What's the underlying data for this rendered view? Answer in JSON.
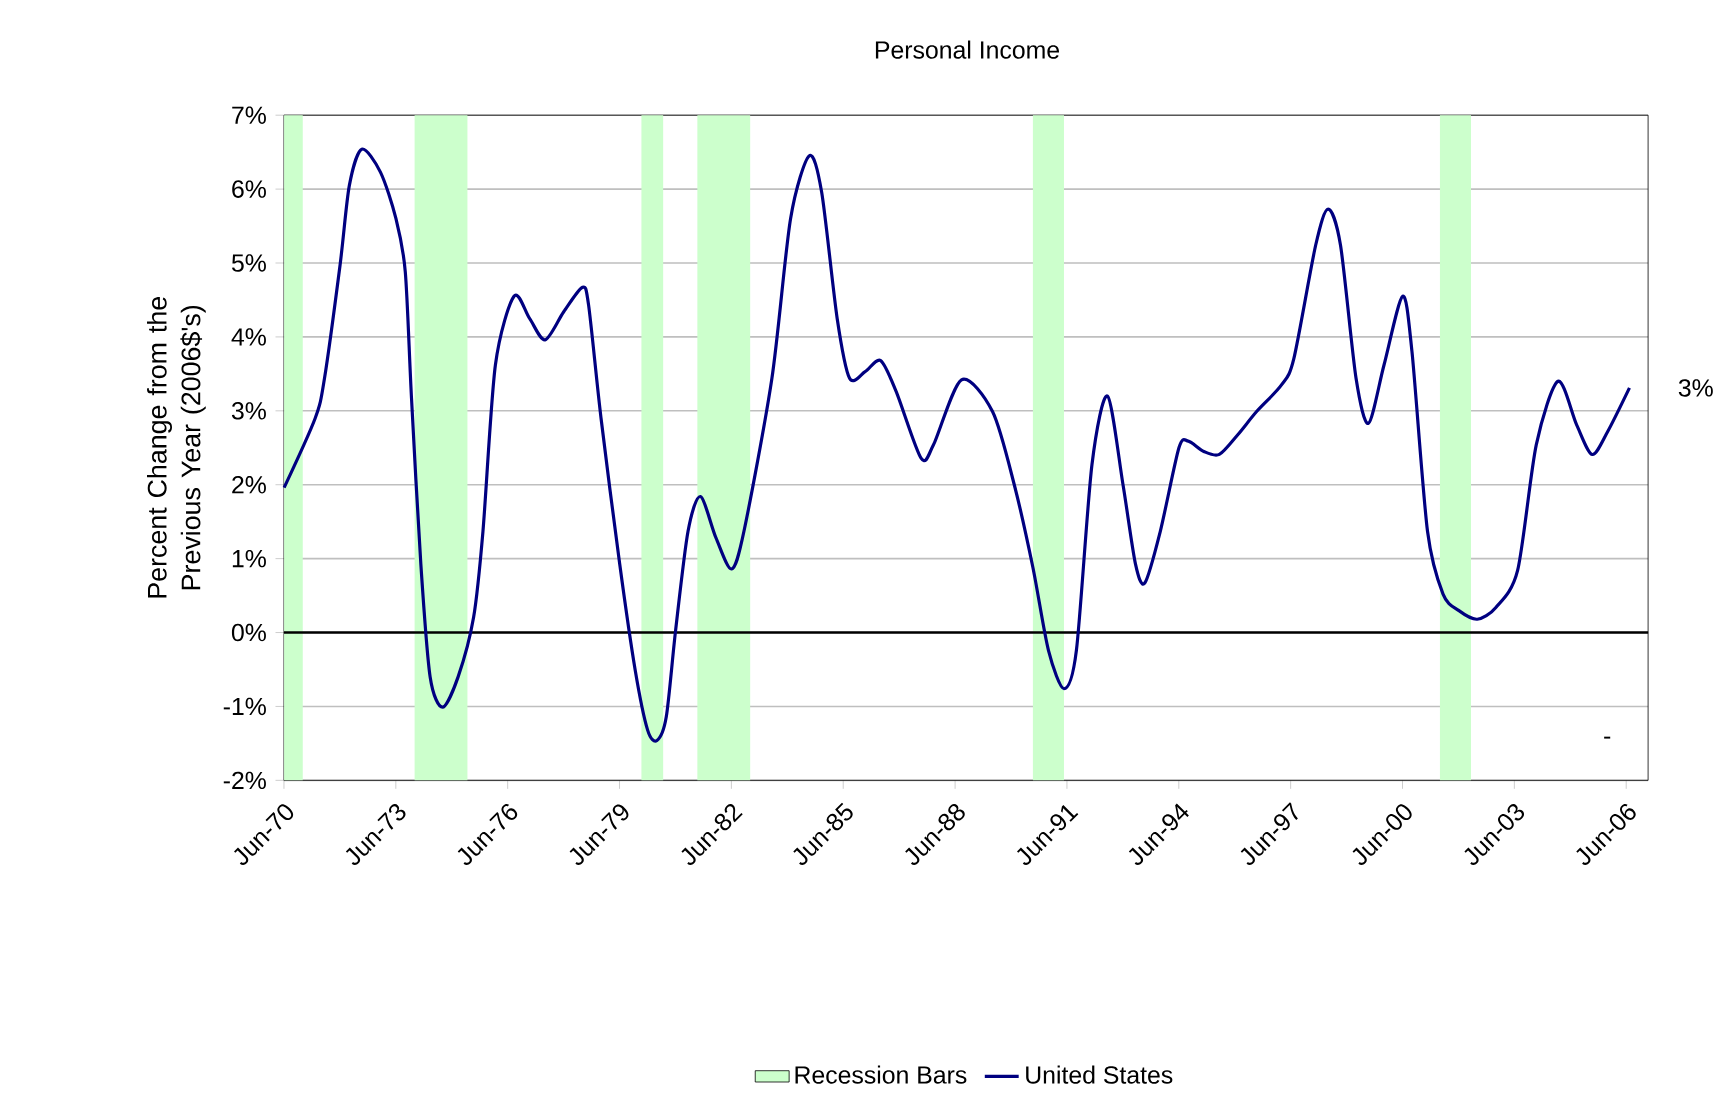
{
  "chart_data": {
    "type": "line",
    "title": "Personal Income",
    "ylabel": "Percent Change from the Previous Year (2006$'s)",
    "series": [
      {
        "name": "United States",
        "color": "#000080",
        "x": [
          "1970-07",
          "1971-05",
          "1971-08",
          "1972-01",
          "1972-04",
          "1972-08",
          "1973-02",
          "1973-07",
          "1973-10",
          "1973-12",
          "1974-03",
          "1974-06",
          "1974-10",
          "1975-03",
          "1975-08",
          "1975-11",
          "1976-03",
          "1976-09",
          "1977-02",
          "1977-07",
          "1978-01",
          "1978-07",
          "1978-09",
          "1979-01",
          "1979-07",
          "1979-12",
          "1980-04",
          "1980-07",
          "1980-10",
          "1981-01",
          "1981-05",
          "1981-09",
          "1982-02",
          "1982-07",
          "1982-11",
          "1983-08",
          "1984-02",
          "1984-08",
          "1984-12",
          "1985-05",
          "1985-09",
          "1986-02",
          "1986-07",
          "1986-12",
          "1987-08",
          "1987-12",
          "1988-09",
          "1989-07",
          "1990-02",
          "1990-08",
          "1991-01",
          "1991-06",
          "1991-10",
          "1992-03",
          "1992-08",
          "1993-01",
          "1993-05",
          "1993-08",
          "1994-01",
          "1994-07",
          "1994-10",
          "1995-03",
          "1995-08",
          "1996-02",
          "1996-08",
          "1997-04",
          "1997-08",
          "1998-03",
          "1998-07",
          "1998-11",
          "1999-04",
          "1999-08",
          "2000-01",
          "2000-07",
          "2000-10",
          "2001-03",
          "2001-08",
          "2002-01",
          "2002-07",
          "2003-01",
          "2003-08",
          "2004-02",
          "2004-09",
          "2005-03",
          "2005-08",
          "2006-01",
          "2006-08"
        ],
        "values": [
          1.96,
          2.9,
          3.44,
          4.97,
          6.05,
          6.54,
          6.23,
          5.6,
          4.88,
          3.17,
          0.93,
          -0.6,
          -1.01,
          -0.6,
          0.21,
          1.37,
          3.62,
          4.55,
          4.25,
          3.96,
          4.34,
          4.67,
          4.43,
          2.9,
          0.93,
          -0.51,
          -1.32,
          -1.46,
          -1.14,
          0.03,
          1.37,
          1.84,
          1.28,
          0.86,
          1.37,
          3.44,
          5.6,
          6.45,
          5.96,
          4.25,
          3.44,
          3.53,
          3.68,
          3.26,
          2.36,
          2.54,
          3.42,
          2.99,
          2.0,
          0.88,
          -0.24,
          -0.76,
          -0.24,
          2.27,
          3.2,
          2.0,
          0.93,
          0.67,
          1.37,
          2.5,
          2.59,
          2.45,
          2.41,
          2.68,
          2.99,
          3.35,
          3.71,
          5.24,
          5.73,
          5.24,
          3.44,
          2.83,
          3.62,
          4.55,
          3.8,
          1.37,
          0.52,
          0.3,
          0.18,
          0.34,
          0.84,
          2.54,
          3.4,
          2.81,
          2.41,
          2.72,
          3.31
        ]
      }
    ],
    "bands": [
      {
        "axis": "x",
        "from": "1970-07",
        "to": "1971-01",
        "label": "Recession Bars",
        "color": "#ccffcc"
      },
      {
        "axis": "x",
        "from": "1974-01",
        "to": "1975-06",
        "color": "#ccffcc"
      },
      {
        "axis": "x",
        "from": "1980-02",
        "to": "1980-09",
        "color": "#ccffcc"
      },
      {
        "axis": "x",
        "from": "1981-08",
        "to": "1983-01",
        "color": "#ccffcc"
      },
      {
        "axis": "x",
        "from": "1990-08",
        "to": "1991-06",
        "color": "#ccffcc"
      },
      {
        "axis": "x",
        "from": "2001-07",
        "to": "2002-05",
        "color": "#ccffcc"
      }
    ],
    "annotations": [
      {
        "text": "3%",
        "x": "2006-08",
        "y": 3.31
      },
      "-"
    ],
    "xlim": [
      "1970-06-30",
      "2007-02"
    ],
    "ylim": [
      -2,
      7
    ],
    "xticks": [
      {
        "value": "1970-06-30",
        "label": "Jun-70"
      },
      {
        "value": "1973-06-30",
        "label": "Jun-73"
      },
      {
        "value": "1976-06-30",
        "label": "Jun-76"
      },
      {
        "value": "1979-06-30",
        "label": "Jun-79"
      },
      {
        "value": "1982-06-30",
        "label": "Jun-82"
      },
      {
        "value": "1985-06-30",
        "label": "Jun-85"
      },
      {
        "value": "1988-06-30",
        "label": "Jun-88"
      },
      {
        "value": "1991-06-30",
        "label": "Jun-91"
      },
      {
        "value": "1994-06-30",
        "label": "Jun-94"
      },
      {
        "value": "1997-06-30",
        "label": "Jun-97"
      },
      {
        "value": "2000-06-30",
        "label": "Jun-00"
      },
      {
        "value": "2003-06-30",
        "label": "Jun-03"
      },
      {
        "value": "2006-06-30",
        "label": "Jun-06"
      }
    ],
    "yticks": [
      {
        "value": -2,
        "label": "-2%"
      },
      {
        "value": -1,
        "label": "-1%"
      },
      {
        "value": 0,
        "label": "0%"
      },
      {
        "value": 1,
        "label": "1%"
      },
      {
        "value": 2,
        "label": "2%"
      },
      {
        "value": 3,
        "label": "3%"
      },
      {
        "value": 4,
        "label": "4%"
      },
      {
        "value": 5,
        "label": "5%"
      },
      {
        "value": 6,
        "label": "6%"
      },
      {
        "value": 7,
        "label": "7%"
      }
    ],
    "grid": "y",
    "legend": "bottom",
    "marker": "none",
    "line_style": "solid"
  }
}
